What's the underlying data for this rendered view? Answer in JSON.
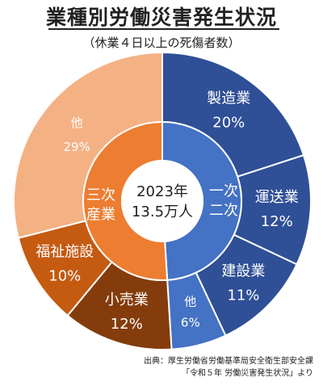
{
  "title": "業種別労働災害発生状況",
  "subtitle": "（休業４日以上の死傷者数）",
  "source": {
    "line1": "出典：厚生労働省労働基準局安全衛生部安全課",
    "line2": "「令和５年 労働災害発生状況」より"
  },
  "chart_data": {
    "type": "donut",
    "center": {
      "year": "2023年",
      "total": "13.5万人"
    },
    "inner": [
      {
        "name": "一次二次",
        "value": 49,
        "color": "#4472c4",
        "label_lines": [
          "一次",
          "二次"
        ]
      },
      {
        "name": "三次産業",
        "value": 51,
        "color": "#ed7d31",
        "label_lines": [
          "三次",
          "産業"
        ]
      }
    ],
    "outer": [
      {
        "name": "製造業",
        "percent": "20%",
        "value": 20,
        "color": "#2f4f96"
      },
      {
        "name": "運送業",
        "percent": "12%",
        "value": 12,
        "color": "#2f4f96"
      },
      {
        "name": "建設業",
        "percent": "11%",
        "value": 11,
        "color": "#2f4f96"
      },
      {
        "name": "他",
        "percent": "6%",
        "value": 6,
        "color": "#4472c4"
      },
      {
        "name": "小売業",
        "percent": "12%",
        "value": 12,
        "color": "#843c0c"
      },
      {
        "name": "福祉施設",
        "percent": "10%",
        "value": 10,
        "color": "#c55a11"
      },
      {
        "name": "他",
        "percent": "29%",
        "value": 29,
        "color": "#f4b183"
      }
    ]
  }
}
